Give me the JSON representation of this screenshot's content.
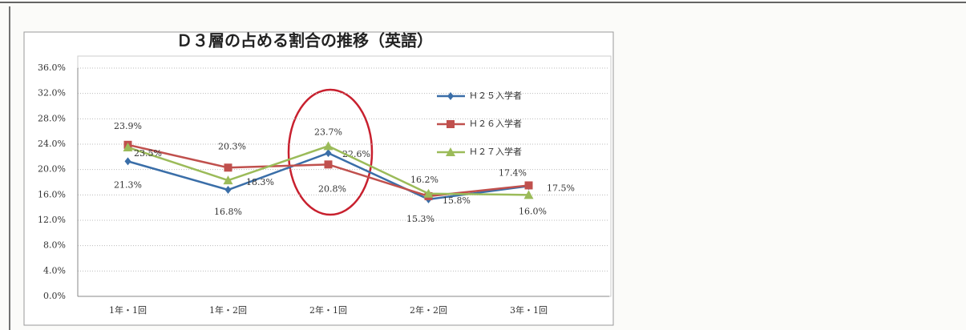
{
  "chart_data": {
    "type": "line",
    "title": "Ｄ３層の占める割合の推移（英語）",
    "categories": [
      "1年・1回",
      "1年・2回",
      "2年・1回",
      "2年・2回",
      "3年・1回"
    ],
    "series": [
      {
        "name": "Ｈ２５入学者",
        "color": "#3a6ea8",
        "marker": "diamond",
        "values": [
          21.3,
          16.8,
          22.6,
          15.3,
          17.4
        ],
        "value_labels": [
          "21.3%",
          "16.8%",
          "22.6%",
          "15.3%",
          "17.4%"
        ]
      },
      {
        "name": "Ｈ２６入学者",
        "color": "#c0504d",
        "marker": "square",
        "values": [
          23.9,
          20.3,
          20.8,
          15.8,
          17.5
        ],
        "value_labels": [
          "23.9%",
          "20.3%",
          "20.8%",
          "15.8%",
          "17.5%"
        ]
      },
      {
        "name": "Ｈ２７入学者",
        "color": "#9bbb59",
        "marker": "triangle",
        "values": [
          23.5,
          18.3,
          23.7,
          16.2,
          16.0
        ],
        "value_labels": [
          "23.5%",
          "18.3%",
          "23.7%",
          "16.2%",
          "16.0%"
        ]
      }
    ],
    "ylim": [
      0,
      36
    ],
    "yticks": [
      {
        "value": 0,
        "label": "0.0%"
      },
      {
        "value": 4,
        "label": "4.0%"
      },
      {
        "value": 8,
        "label": "8.0%"
      },
      {
        "value": 12,
        "label": "12.0%"
      },
      {
        "value": 16,
        "label": "16.0%"
      },
      {
        "value": 20,
        "label": "20.0%"
      },
      {
        "value": 24,
        "label": "24.0%"
      },
      {
        "value": 28,
        "label": "28.0%"
      },
      {
        "value": 32,
        "label": "32.0%"
      },
      {
        "value": 36,
        "label": "36.0%"
      }
    ],
    "grid": true,
    "legend": "upper right"
  }
}
